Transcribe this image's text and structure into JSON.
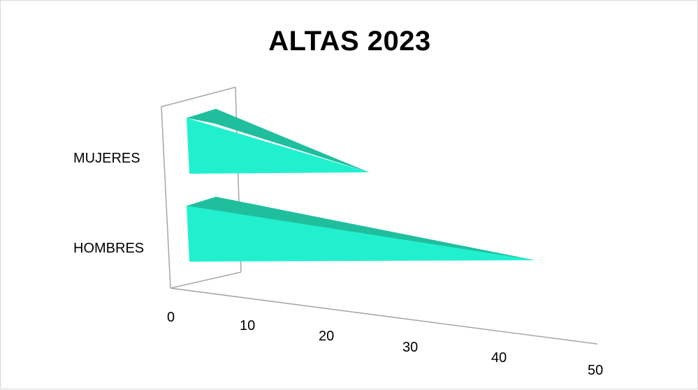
{
  "chart_data": {
    "type": "bar",
    "title": "ALTAS 2023",
    "categories": [
      "MUJERES",
      "HOMBRES"
    ],
    "series": [
      {
        "values": [
          26,
          50
        ]
      }
    ],
    "xlim": [
      0,
      50
    ],
    "x_ticks": [
      "0",
      "10",
      "20",
      "30",
      "40",
      "50"
    ],
    "orientation": "horizontal",
    "style": "3d-pyramid",
    "bar_color": "#21f0cf",
    "bar_shade_color": "#1fbf9e",
    "legend": "none",
    "grid": false
  }
}
